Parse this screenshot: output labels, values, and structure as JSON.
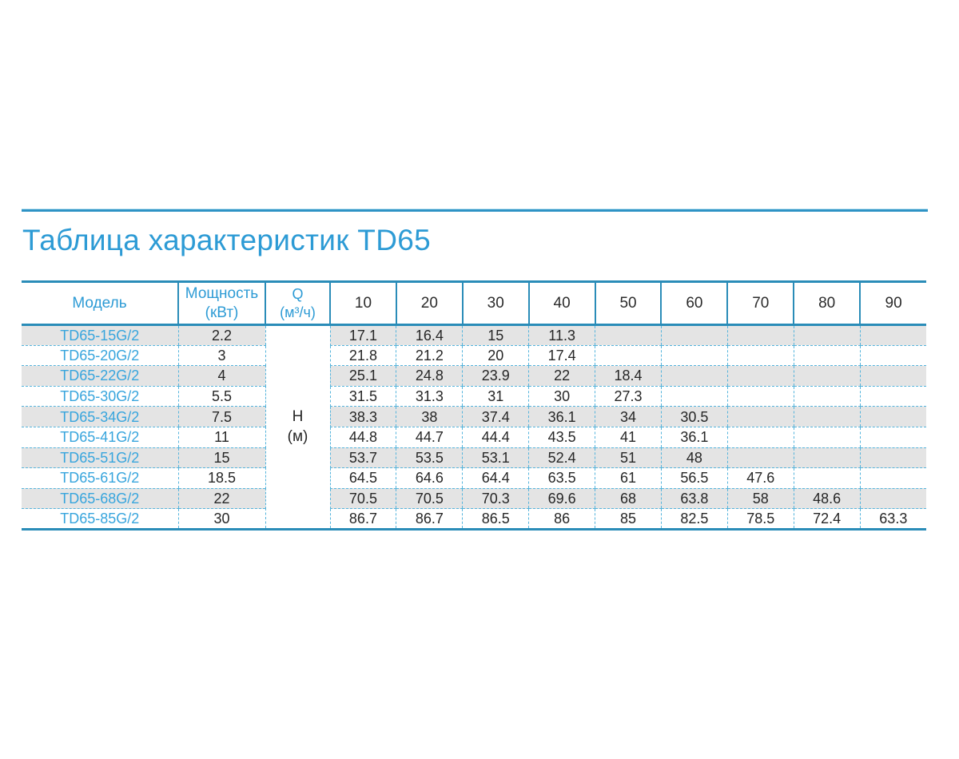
{
  "page": {
    "title": "Таблица характеристик TD65"
  },
  "colors": {
    "accent_blue": "#2d9bd5",
    "model_blue": "#38a5dd",
    "solid_border_teal": "#2a8cb8",
    "dashed_border_blue": "#55b4dc",
    "top_rule_blue": "#2e93c5",
    "alt_row_bg": "#e4e4e4",
    "value_text": "#262626"
  },
  "table": {
    "header": {
      "model": "Модель",
      "power_line1": "Мощность",
      "power_line2": "(кВт)",
      "q_line1": "Q",
      "q_line2": "(м³/ч)",
      "flow_values": [
        "10",
        "20",
        "30",
        "40",
        "50",
        "60",
        "70",
        "80",
        "90"
      ]
    },
    "unit_cell": {
      "line1": "Н",
      "line2": "(м)"
    },
    "rows": [
      {
        "model": "TD65-15G/2",
        "power": "2.2",
        "heads": [
          "17.1",
          "16.4",
          "15",
          "11.3",
          "",
          "",
          "",
          "",
          ""
        ]
      },
      {
        "model": "TD65-20G/2",
        "power": "3",
        "heads": [
          "21.8",
          "21.2",
          "20",
          "17.4",
          "",
          "",
          "",
          "",
          ""
        ]
      },
      {
        "model": "TD65-22G/2",
        "power": "4",
        "heads": [
          "25.1",
          "24.8",
          "23.9",
          "22",
          "18.4",
          "",
          "",
          "",
          ""
        ]
      },
      {
        "model": "TD65-30G/2",
        "power": "5.5",
        "heads": [
          "31.5",
          "31.3",
          "31",
          "30",
          "27.3",
          "",
          "",
          "",
          ""
        ]
      },
      {
        "model": "TD65-34G/2",
        "power": "7.5",
        "heads": [
          "38.3",
          "38",
          "37.4",
          "36.1",
          "34",
          "30.5",
          "",
          "",
          ""
        ]
      },
      {
        "model": "TD65-41G/2",
        "power": "11",
        "heads": [
          "44.8",
          "44.7",
          "44.4",
          "43.5",
          "41",
          "36.1",
          "",
          "",
          ""
        ]
      },
      {
        "model": "TD65-51G/2",
        "power": "15",
        "heads": [
          "53.7",
          "53.5",
          "53.1",
          "52.4",
          "51",
          "48",
          "",
          "",
          ""
        ]
      },
      {
        "model": "TD65-61G/2",
        "power": "18.5",
        "heads": [
          "64.5",
          "64.6",
          "64.4",
          "63.5",
          "61",
          "56.5",
          "47.6",
          "",
          ""
        ]
      },
      {
        "model": "TD65-68G/2",
        "power": "22",
        "heads": [
          "70.5",
          "70.5",
          "70.3",
          "69.6",
          "68",
          "63.8",
          "58",
          "48.6",
          ""
        ]
      },
      {
        "model": "TD65-85G/2",
        "power": "30",
        "heads": [
          "86.7",
          "86.7",
          "86.5",
          "86",
          "85",
          "82.5",
          "78.5",
          "72.4",
          "63.3"
        ]
      }
    ]
  }
}
